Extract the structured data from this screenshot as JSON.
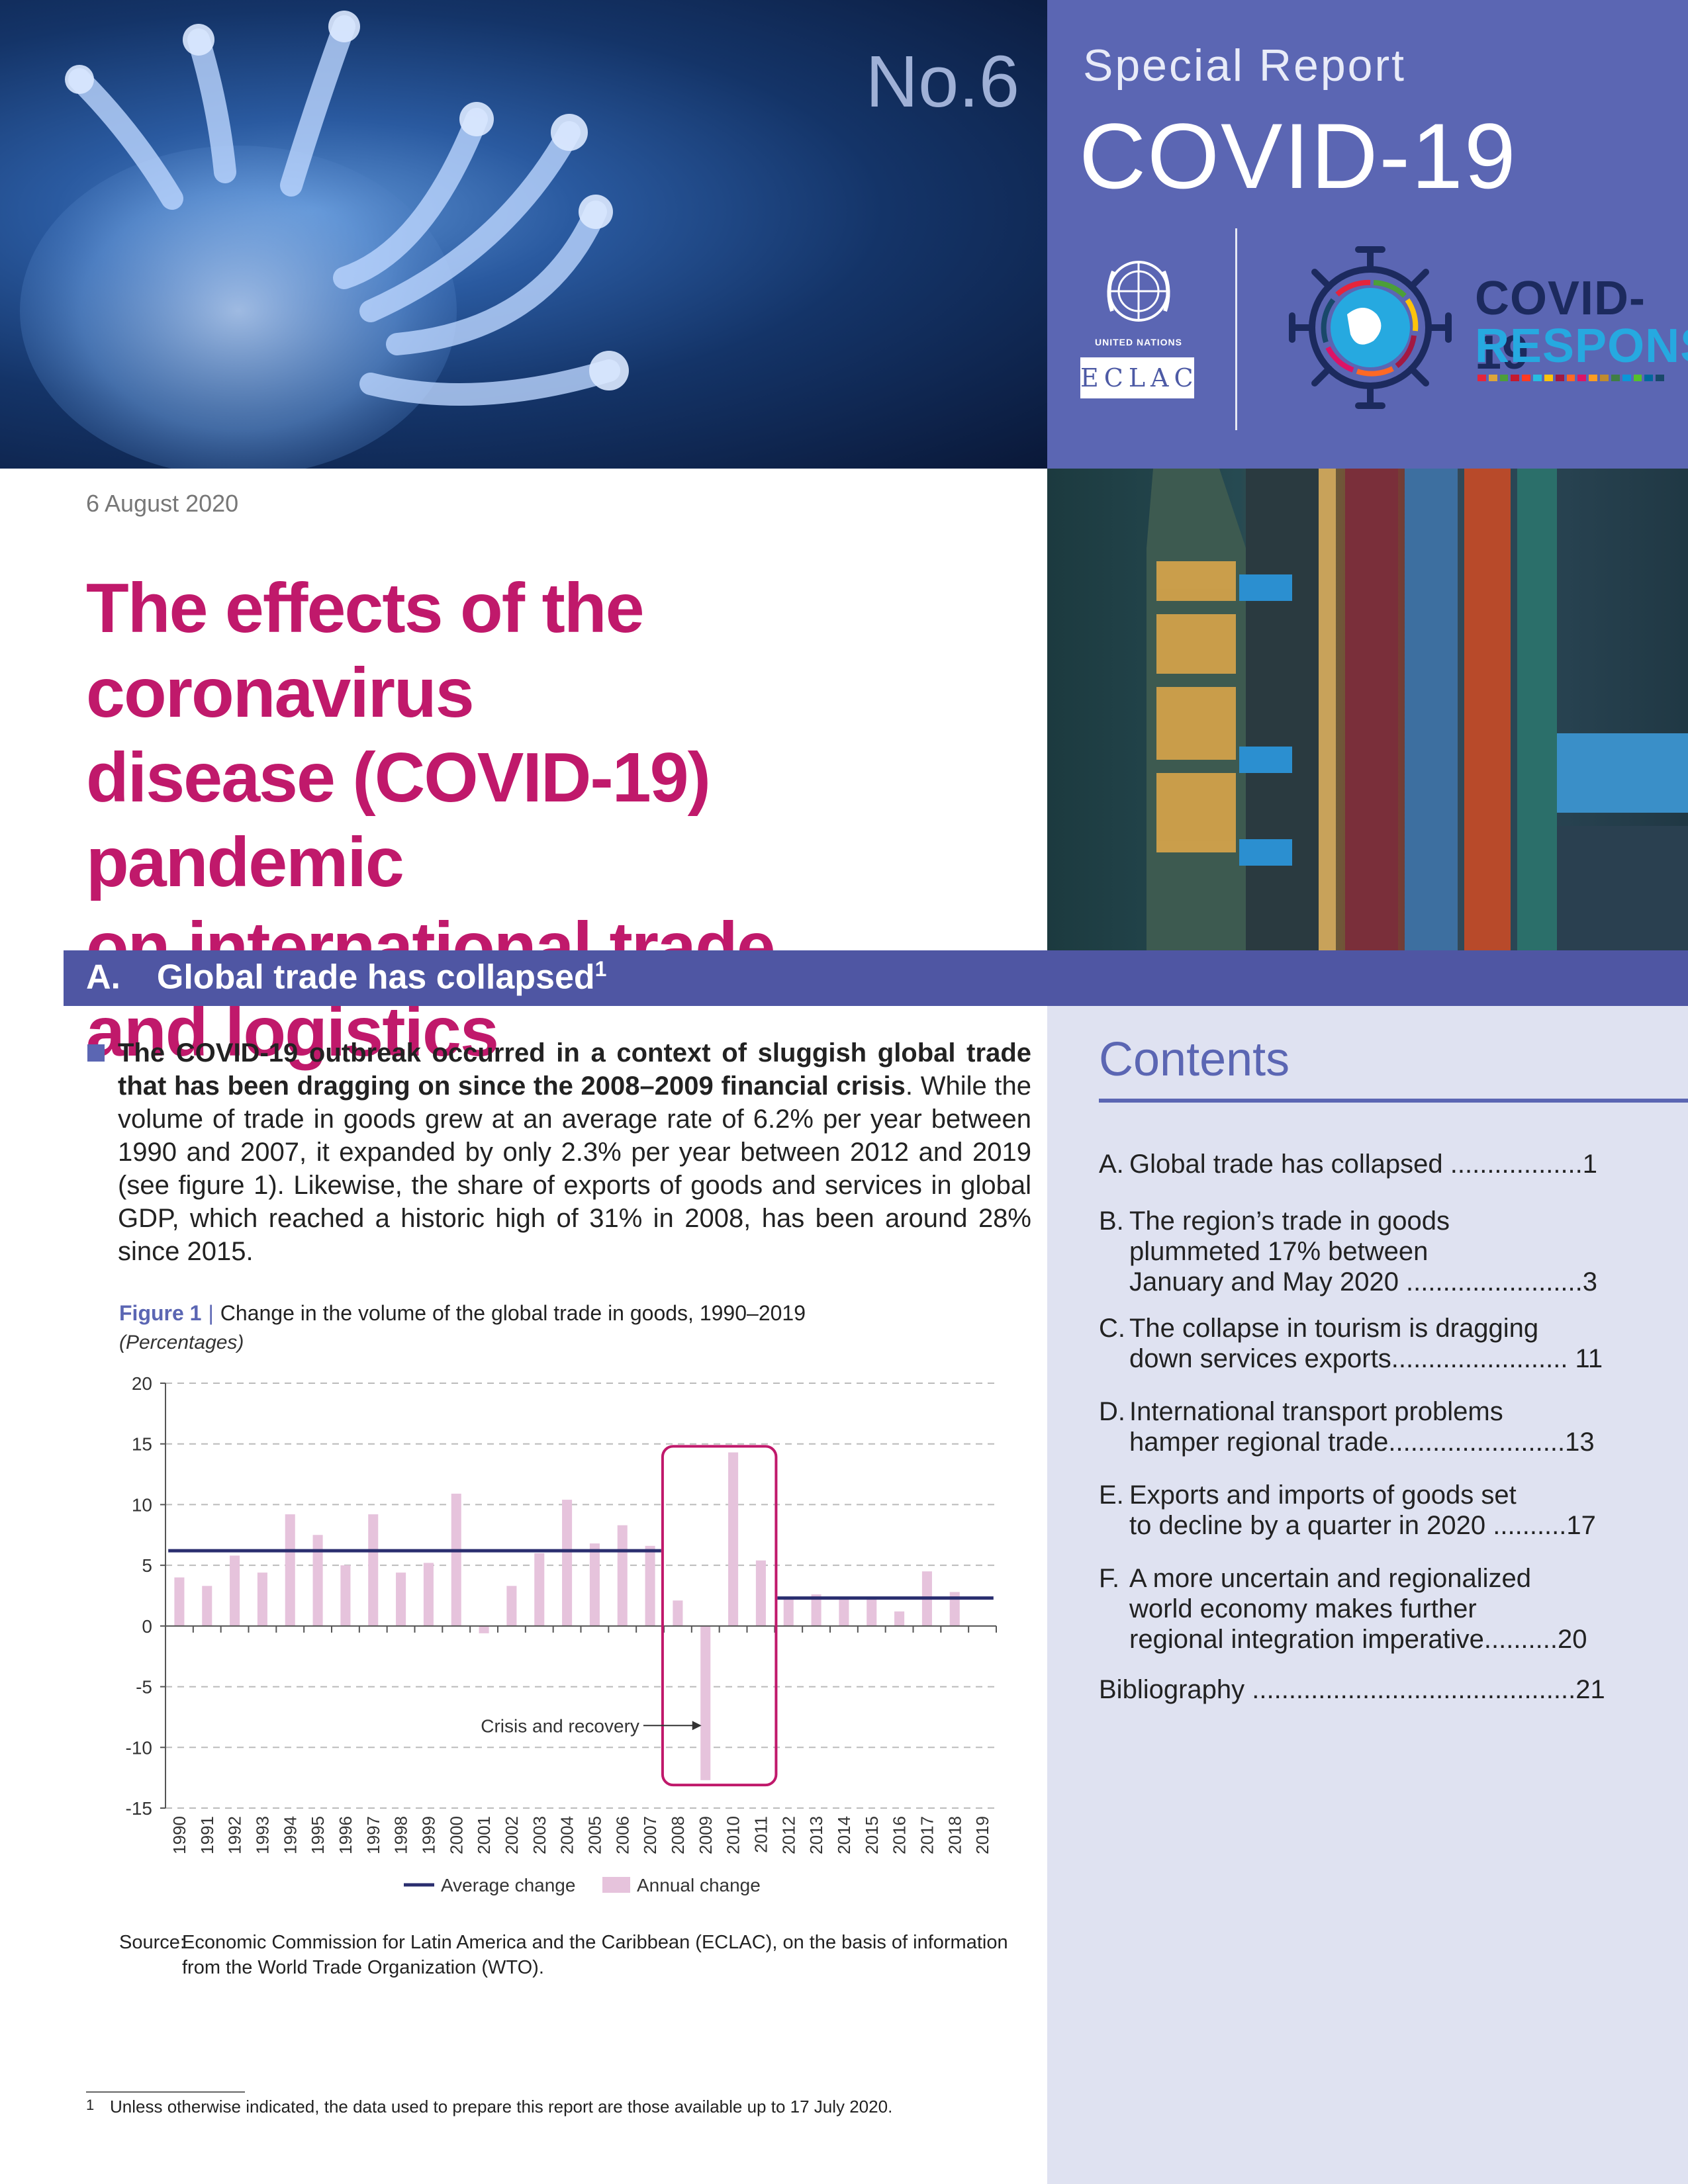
{
  "header": {
    "issue_no": "No.6",
    "special_report": "Special Report",
    "covid_title": "COVID-19",
    "un_label": "United Nations",
    "eclac_label": "ECLAC",
    "response_line1": "COVID-19",
    "response_line2": "RESPONSE",
    "sdg_colors": [
      "#e5243b",
      "#dda63a",
      "#4c9f38",
      "#c5192d",
      "#ff3a21",
      "#26bde2",
      "#fcc30b",
      "#a21942",
      "#fd6925",
      "#dd1367",
      "#fd9d24",
      "#bf8b2e",
      "#3f7e44",
      "#0a97d9",
      "#56c02b",
      "#00689d",
      "#19486a"
    ]
  },
  "date": "6 August 2020",
  "title_lines": [
    "The effects of the coronavirus",
    "disease (COVID-19) pandemic",
    "on international trade",
    "and logistics"
  ],
  "section": {
    "letter": "A.",
    "title": "Global trade has collapsed",
    "footnote_mark": "1"
  },
  "body": {
    "bold_text": "The COVID-19 outbreak occurred in a context of sluggish global trade that has been dragging on since the 2008–2009 financial crisis",
    "rest_text": ". While the volume of trade in goods grew at an average rate of 6.2% per year between 1990 and 2007, it expanded by only 2.3% per year between 2012 and 2019 (see figure 1). Likewise, the share of exports of goods and services in global GDP, which reached a historic high of 31% in 2008, has been around 28% since 2015."
  },
  "figure": {
    "number": "Figure 1",
    "separator": "|",
    "caption": "Change in the volume of the global trade in goods, 1990–2019",
    "units": "(Percentages)",
    "source_label": "Source:",
    "source_text": "Economic Commission for Latin America and the Caribbean (ECLAC), on the basis of information from the World Trade Organization (WTO)."
  },
  "chart_data": {
    "type": "bar",
    "title": "Change in the volume of the global trade in goods, 1990–2019",
    "ylabel": "(Percentages)",
    "ylim": [
      -15,
      20
    ],
    "yticks": [
      20,
      15,
      10,
      5,
      0,
      -5,
      -10,
      -15
    ],
    "grid": true,
    "legend_position": "bottom",
    "categories": [
      "1990",
      "1991",
      "1992",
      "1993",
      "1994",
      "1995",
      "1996",
      "1997",
      "1998",
      "1999",
      "2000",
      "2001",
      "2002",
      "2003",
      "2004",
      "2005",
      "2006",
      "2007",
      "2008",
      "2009",
      "2010",
      "2011",
      "2012",
      "2013",
      "2014",
      "2015",
      "2016",
      "2017",
      "2018",
      "2019"
    ],
    "series": [
      {
        "name": "Annual change",
        "color": "#e6c3dc",
        "values": [
          4.0,
          3.3,
          5.8,
          4.4,
          9.2,
          7.5,
          5.0,
          9.2,
          4.4,
          5.2,
          10.9,
          -0.6,
          3.3,
          6.0,
          10.4,
          6.8,
          8.3,
          6.6,
          2.1,
          -12.7,
          14.3,
          5.4,
          2.2,
          2.6,
          2.4,
          2.2,
          1.2,
          4.5,
          2.8,
          0.0
        ]
      },
      {
        "name": "Average change",
        "color": "#2a2e6f",
        "segments": [
          {
            "from": "1990",
            "to": "2007",
            "value": 6.2
          },
          {
            "from": "2012",
            "to": "2019",
            "value": 2.3
          }
        ]
      }
    ],
    "annotation": {
      "text": "Crisis and recovery",
      "from": "2008",
      "to": "2011",
      "color": "#c0196b"
    }
  },
  "contents": {
    "heading": "Contents",
    "items": [
      {
        "letter": "A.",
        "lines": [
          "Global trade has collapsed ..................1"
        ]
      },
      {
        "letter": "B.",
        "lines": [
          "The region’s trade in goods",
          "plummeted 17% between",
          "January and May 2020 ........................3"
        ]
      },
      {
        "letter": "C.",
        "lines": [
          "The collapse in tourism is dragging",
          "down services exports........................ 11"
        ]
      },
      {
        "letter": "D.",
        "lines": [
          "International transport problems",
          "hamper regional trade........................13"
        ]
      },
      {
        "letter": "E.",
        "lines": [
          "Exports and imports of goods set",
          "to decline by a quarter in 2020 ..........17"
        ]
      },
      {
        "letter": "F.",
        "lines": [
          "A more uncertain and regionalized",
          "world economy makes further",
          "regional integration imperative..........20"
        ]
      },
      {
        "letter": "",
        "lines": [
          "Bibliography ............................................21"
        ]
      }
    ]
  },
  "footnote": {
    "number": "1",
    "text": "Unless otherwise indicated, the data used to prepare this report are those available up to 17 July 2020."
  }
}
